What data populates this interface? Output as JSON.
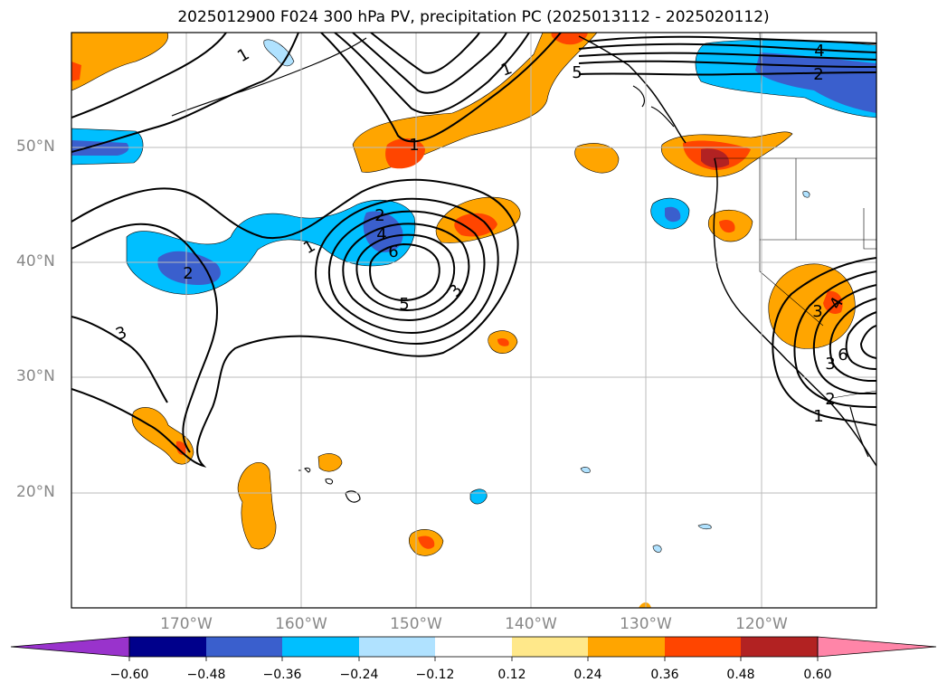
{
  "title": "2025012900 F024 300 hPa PV, precipitation PC (2025013112 - 2025020112)",
  "map": {
    "latitude_labels": [
      {
        "label": "50°N",
        "value": 50
      },
      {
        "label": "40°N",
        "value": 40
      },
      {
        "label": "30°N",
        "value": 30
      },
      {
        "label": "20°N",
        "value": 20
      }
    ],
    "longitude_labels": [
      {
        "label": "170°W",
        "value": -170
      },
      {
        "label": "160°W",
        "value": -160
      },
      {
        "label": "150°W",
        "value": -150
      },
      {
        "label": "140°W",
        "value": -140
      },
      {
        "label": "130°W",
        "value": -130
      },
      {
        "label": "120°W",
        "value": -120
      }
    ],
    "extent": {
      "lon_min": -180,
      "lon_max": -110,
      "lat_min": 10,
      "lat_max": 60
    },
    "contour_labels": [
      "1",
      "1",
      "1",
      "1",
      "1",
      "2",
      "2",
      "2",
      "2",
      "3",
      "3",
      "3",
      "3",
      "4",
      "4",
      "4",
      "5",
      "5",
      "6",
      "6"
    ]
  },
  "colorbar": {
    "ticks": [
      "−0.60",
      "−0.48",
      "−0.36",
      "−0.24",
      "−0.12",
      "0.12",
      "0.24",
      "0.36",
      "0.48",
      "0.60"
    ],
    "colors": [
      "#9933cc",
      "#00008b",
      "#3a5fcd",
      "#00bfff",
      "#b0e2ff",
      "#ffffff",
      "#ffe88a",
      "#ffa500",
      "#ff4500",
      "#b22222",
      "#ff85a8"
    ]
  }
}
